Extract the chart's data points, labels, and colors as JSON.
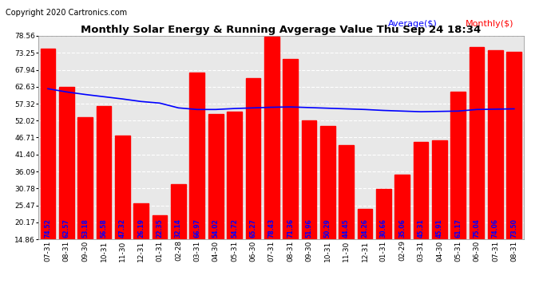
{
  "title": "Monthly Solar Energy & Running Avgerage Value Thu Sep 24 18:34",
  "copyright": "Copyright 2020 Cartronics.com",
  "legend_avg": "Average($)",
  "legend_monthly": "Monthly($)",
  "categories": [
    "07-31",
    "08-31",
    "09-30",
    "10-31",
    "11-30",
    "12-31",
    "01-31",
    "02-28",
    "03-31",
    "04-30",
    "05-31",
    "06-30",
    "07-31",
    "08-31",
    "09-30",
    "10-31",
    "11-30",
    "12-31",
    "01-31",
    "02-29",
    "03-31",
    "04-30",
    "05-31",
    "06-30",
    "07-31",
    "08-31"
  ],
  "bar_values": [
    74.52,
    62.57,
    53.18,
    56.58,
    47.32,
    26.19,
    22.35,
    32.14,
    66.97,
    54.02,
    54.72,
    65.27,
    78.43,
    71.36,
    51.96,
    50.29,
    44.45,
    24.26,
    30.66,
    35.06,
    45.31,
    45.91,
    61.17,
    75.04,
    74.06,
    73.5
  ],
  "avg_values": [
    62.0,
    61.0,
    60.2,
    59.5,
    58.8,
    58.0,
    57.5,
    56.0,
    55.5,
    55.5,
    55.8,
    56.0,
    56.2,
    56.3,
    56.1,
    55.9,
    55.7,
    55.5,
    55.2,
    55.0,
    54.8,
    54.9,
    55.0,
    55.5,
    55.6,
    55.7
  ],
  "bar_color": "#ff0000",
  "avg_line_color": "#0000ff",
  "bar_label_color": "#0000ff",
  "bg_color": "#ffffff",
  "plot_bg_color": "#e8e8e8",
  "grid_color": "#ffffff",
  "ytick_labels": [
    "14.86",
    "20.17",
    "25.47",
    "30.78",
    "36.09",
    "41.40",
    "46.71",
    "52.02",
    "57.32",
    "62.63",
    "67.94",
    "73.25",
    "78.56"
  ],
  "ymin": 14.86,
  "ymax": 78.56,
  "title_fontsize": 9.5,
  "copyright_fontsize": 7,
  "bar_label_fontsize": 5.5,
  "tick_fontsize": 6.5,
  "legend_fontsize": 8
}
